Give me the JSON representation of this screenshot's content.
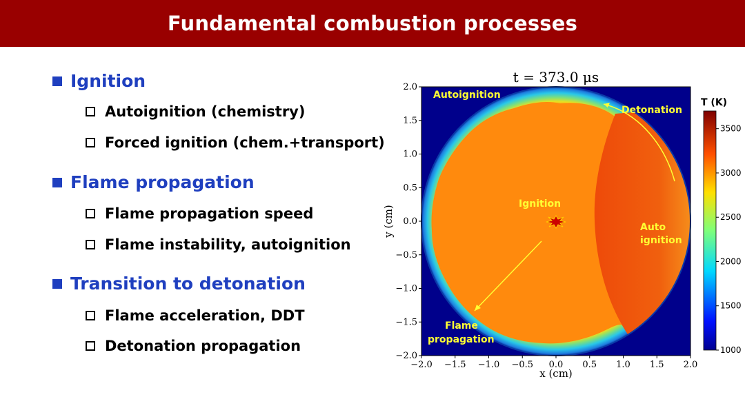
{
  "title": "Fundamental combustion processes",
  "outline": [
    {
      "heading": "Ignition",
      "items": [
        "Autoignition (chemistry)",
        "Forced ignition (chem.+transport)"
      ]
    },
    {
      "heading": "Flame propagation",
      "items": [
        "Flame propagation speed",
        "Flame instability, autoignition"
      ]
    },
    {
      "heading": "Transition to detonation",
      "items": [
        "Flame acceleration, DDT",
        "Detonation propagation"
      ]
    }
  ],
  "figure": {
    "title": "t = 373.0 μs",
    "xlabel": "x (cm)",
    "ylabel": "y (cm)",
    "xlim": [
      -2.0,
      2.0
    ],
    "ylim": [
      -2.0,
      2.0
    ],
    "xticks": [
      "−2.0",
      "−1.5",
      "−1.0",
      "−0.5",
      "0.0",
      "0.5",
      "1.0",
      "1.5",
      "2.0"
    ],
    "yticks": [
      "2.0",
      "1.5",
      "1.0",
      "0.5",
      "0.0",
      "−0.5",
      "−1.0",
      "−1.5",
      "−2.0"
    ],
    "annotations": {
      "autoignition_top": "Autoignition",
      "detonation": "Detonation",
      "ignition": "Ignition",
      "auto_ignition_line1": "Auto",
      "auto_ignition_line2": "ignition",
      "flame_line1": "Flame",
      "flame_line2": "propagation"
    },
    "colorbar": {
      "title": "T (K)",
      "ticks": [
        "3500",
        "3000",
        "2500",
        "2000",
        "1500",
        "1000"
      ],
      "range": [
        1000,
        3700
      ]
    },
    "colors": {
      "background": "#00008b",
      "burned": "#ff8a0d",
      "detonation": "#f04a0a",
      "annotation": "#ffff33"
    }
  }
}
